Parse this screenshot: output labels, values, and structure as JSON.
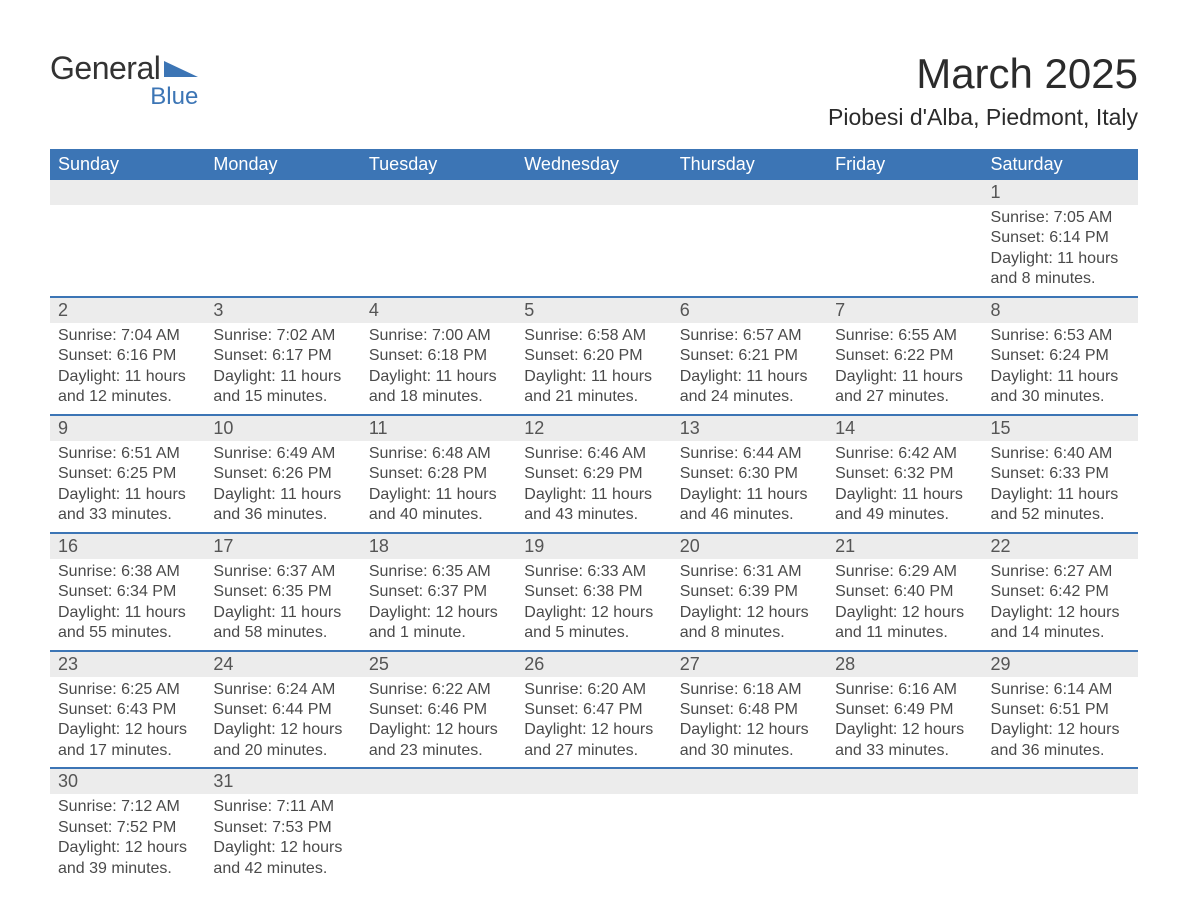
{
  "logo": {
    "text_general": "General",
    "text_blue": "Blue",
    "triangle_color": "#3c75b5"
  },
  "title": {
    "month": "March 2025",
    "location": "Piobesi d'Alba, Piedmont, Italy"
  },
  "style": {
    "header_bg": "#3c75b5",
    "header_fg": "#ffffff",
    "daynum_bg": "#ececec",
    "row_border": "#3c75b5",
    "body_fg": "#4a4a4a",
    "title_fg": "#2b2b2b",
    "page_bg": "#ffffff",
    "th_fontsize": 18,
    "daynum_fontsize": 18,
    "detail_fontsize": 16,
    "month_fontsize": 42,
    "location_fontsize": 23
  },
  "weekdays": [
    "Sunday",
    "Monday",
    "Tuesday",
    "Wednesday",
    "Thursday",
    "Friday",
    "Saturday"
  ],
  "weeks": [
    [
      null,
      null,
      null,
      null,
      null,
      null,
      {
        "n": "1",
        "sr": "Sunrise: 7:05 AM",
        "ss": "Sunset: 6:14 PM",
        "dl": "Daylight: 11 hours and 8 minutes."
      }
    ],
    [
      {
        "n": "2",
        "sr": "Sunrise: 7:04 AM",
        "ss": "Sunset: 6:16 PM",
        "dl": "Daylight: 11 hours and 12 minutes."
      },
      {
        "n": "3",
        "sr": "Sunrise: 7:02 AM",
        "ss": "Sunset: 6:17 PM",
        "dl": "Daylight: 11 hours and 15 minutes."
      },
      {
        "n": "4",
        "sr": "Sunrise: 7:00 AM",
        "ss": "Sunset: 6:18 PM",
        "dl": "Daylight: 11 hours and 18 minutes."
      },
      {
        "n": "5",
        "sr": "Sunrise: 6:58 AM",
        "ss": "Sunset: 6:20 PM",
        "dl": "Daylight: 11 hours and 21 minutes."
      },
      {
        "n": "6",
        "sr": "Sunrise: 6:57 AM",
        "ss": "Sunset: 6:21 PM",
        "dl": "Daylight: 11 hours and 24 minutes."
      },
      {
        "n": "7",
        "sr": "Sunrise: 6:55 AM",
        "ss": "Sunset: 6:22 PM",
        "dl": "Daylight: 11 hours and 27 minutes."
      },
      {
        "n": "8",
        "sr": "Sunrise: 6:53 AM",
        "ss": "Sunset: 6:24 PM",
        "dl": "Daylight: 11 hours and 30 minutes."
      }
    ],
    [
      {
        "n": "9",
        "sr": "Sunrise: 6:51 AM",
        "ss": "Sunset: 6:25 PM",
        "dl": "Daylight: 11 hours and 33 minutes."
      },
      {
        "n": "10",
        "sr": "Sunrise: 6:49 AM",
        "ss": "Sunset: 6:26 PM",
        "dl": "Daylight: 11 hours and 36 minutes."
      },
      {
        "n": "11",
        "sr": "Sunrise: 6:48 AM",
        "ss": "Sunset: 6:28 PM",
        "dl": "Daylight: 11 hours and 40 minutes."
      },
      {
        "n": "12",
        "sr": "Sunrise: 6:46 AM",
        "ss": "Sunset: 6:29 PM",
        "dl": "Daylight: 11 hours and 43 minutes."
      },
      {
        "n": "13",
        "sr": "Sunrise: 6:44 AM",
        "ss": "Sunset: 6:30 PM",
        "dl": "Daylight: 11 hours and 46 minutes."
      },
      {
        "n": "14",
        "sr": "Sunrise: 6:42 AM",
        "ss": "Sunset: 6:32 PM",
        "dl": "Daylight: 11 hours and 49 minutes."
      },
      {
        "n": "15",
        "sr": "Sunrise: 6:40 AM",
        "ss": "Sunset: 6:33 PM",
        "dl": "Daylight: 11 hours and 52 minutes."
      }
    ],
    [
      {
        "n": "16",
        "sr": "Sunrise: 6:38 AM",
        "ss": "Sunset: 6:34 PM",
        "dl": "Daylight: 11 hours and 55 minutes."
      },
      {
        "n": "17",
        "sr": "Sunrise: 6:37 AM",
        "ss": "Sunset: 6:35 PM",
        "dl": "Daylight: 11 hours and 58 minutes."
      },
      {
        "n": "18",
        "sr": "Sunrise: 6:35 AM",
        "ss": "Sunset: 6:37 PM",
        "dl": "Daylight: 12 hours and 1 minute."
      },
      {
        "n": "19",
        "sr": "Sunrise: 6:33 AM",
        "ss": "Sunset: 6:38 PM",
        "dl": "Daylight: 12 hours and 5 minutes."
      },
      {
        "n": "20",
        "sr": "Sunrise: 6:31 AM",
        "ss": "Sunset: 6:39 PM",
        "dl": "Daylight: 12 hours and 8 minutes."
      },
      {
        "n": "21",
        "sr": "Sunrise: 6:29 AM",
        "ss": "Sunset: 6:40 PM",
        "dl": "Daylight: 12 hours and 11 minutes."
      },
      {
        "n": "22",
        "sr": "Sunrise: 6:27 AM",
        "ss": "Sunset: 6:42 PM",
        "dl": "Daylight: 12 hours and 14 minutes."
      }
    ],
    [
      {
        "n": "23",
        "sr": "Sunrise: 6:25 AM",
        "ss": "Sunset: 6:43 PM",
        "dl": "Daylight: 12 hours and 17 minutes."
      },
      {
        "n": "24",
        "sr": "Sunrise: 6:24 AM",
        "ss": "Sunset: 6:44 PM",
        "dl": "Daylight: 12 hours and 20 minutes."
      },
      {
        "n": "25",
        "sr": "Sunrise: 6:22 AM",
        "ss": "Sunset: 6:46 PM",
        "dl": "Daylight: 12 hours and 23 minutes."
      },
      {
        "n": "26",
        "sr": "Sunrise: 6:20 AM",
        "ss": "Sunset: 6:47 PM",
        "dl": "Daylight: 12 hours and 27 minutes."
      },
      {
        "n": "27",
        "sr": "Sunrise: 6:18 AM",
        "ss": "Sunset: 6:48 PM",
        "dl": "Daylight: 12 hours and 30 minutes."
      },
      {
        "n": "28",
        "sr": "Sunrise: 6:16 AM",
        "ss": "Sunset: 6:49 PM",
        "dl": "Daylight: 12 hours and 33 minutes."
      },
      {
        "n": "29",
        "sr": "Sunrise: 6:14 AM",
        "ss": "Sunset: 6:51 PM",
        "dl": "Daylight: 12 hours and 36 minutes."
      }
    ],
    [
      {
        "n": "30",
        "sr": "Sunrise: 7:12 AM",
        "ss": "Sunset: 7:52 PM",
        "dl": "Daylight: 12 hours and 39 minutes."
      },
      {
        "n": "31",
        "sr": "Sunrise: 7:11 AM",
        "ss": "Sunset: 7:53 PM",
        "dl": "Daylight: 12 hours and 42 minutes."
      },
      null,
      null,
      null,
      null,
      null
    ]
  ]
}
